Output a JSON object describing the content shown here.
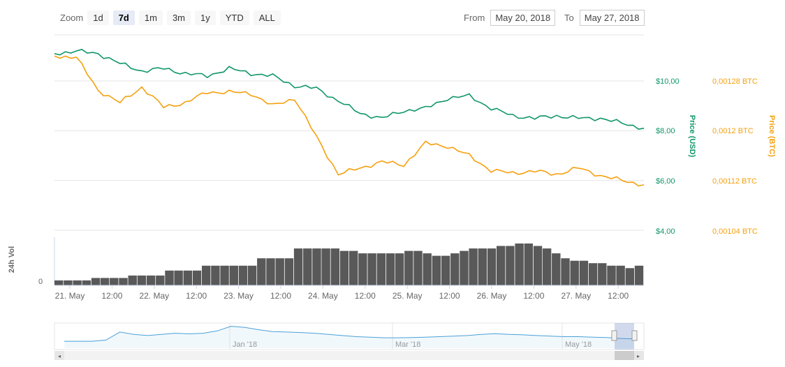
{
  "zoom": {
    "label": "Zoom",
    "buttons": [
      "1d",
      "7d",
      "1m",
      "3m",
      "1y",
      "YTD",
      "ALL"
    ],
    "active": "7d"
  },
  "range": {
    "from_label": "From",
    "from_value": "May 20, 2018",
    "to_label": "To",
    "to_value": "May 27, 2018"
  },
  "colors": {
    "usd": "#109669",
    "btc": "#f5a00d",
    "volume": "#595959",
    "navigator": "#4aa0d8"
  },
  "chart_data": [
    {
      "type": "line",
      "y_axes": [
        {
          "title": "Price (USD)",
          "ticks": [
            "$10,00",
            "$8,00",
            "$6,00",
            "$4,00"
          ],
          "range": [
            4,
            10.5
          ],
          "side": "right"
        },
        {
          "title": "Price (BTC)",
          "ticks": [
            "0,00128 BTC",
            "0,0012 BTC",
            "0,00112 BTC",
            "0,00104 BTC"
          ],
          "range": [
            0.00104,
            0.001285
          ],
          "side": "right"
        }
      ],
      "x_ticks": [
        "21. May",
        "12:00",
        "22. May",
        "12:00",
        "23. May",
        "12:00",
        "24. May",
        "12:00",
        "25. May",
        "12:00",
        "26. May",
        "12:00",
        "27. May",
        "12:00"
      ],
      "grid": true,
      "series": [
        {
          "name": "Price (USD)",
          "x": [
            "May 21 00:00",
            "May 21 06:00",
            "May 21 12:00",
            "May 21 18:00",
            "May 22 00:00",
            "May 22 06:00",
            "May 22 12:00",
            "May 22 18:00",
            "May 23 00:00",
            "May 23 06:00",
            "May 23 12:00",
            "May 23 18:00",
            "May 24 00:00",
            "May 24 06:00",
            "May 24 12:00",
            "May 24 18:00",
            "May 25 00:00",
            "May 25 06:00",
            "May 25 12:00",
            "May 25 18:00",
            "May 26 00:00",
            "May 26 06:00",
            "May 26 12:00",
            "May 26 18:00",
            "May 27 00:00",
            "May 27 06:00",
            "May 27 12:00",
            "May 27 18:00"
          ],
          "values": [
            11.1,
            11.2,
            11.1,
            10.7,
            10.4,
            10.5,
            10.3,
            10.2,
            10.5,
            10.3,
            10.2,
            9.8,
            9.7,
            9.2,
            8.7,
            8.5,
            8.8,
            8.9,
            9.3,
            9.4,
            8.9,
            8.6,
            8.5,
            8.6,
            8.5,
            8.5,
            8.3,
            8.1
          ]
        },
        {
          "name": "Price (BTC)",
          "x": [
            "May 21 00:00",
            "May 21 06:00",
            "May 21 12:00",
            "May 21 18:00",
            "May 22 00:00",
            "May 22 06:00",
            "May 22 12:00",
            "May 22 18:00",
            "May 23 00:00",
            "May 23 06:00",
            "May 23 12:00",
            "May 23 18:00",
            "May 24 00:00",
            "May 24 06:00",
            "May 24 12:00",
            "May 24 18:00",
            "May 25 00:00",
            "May 25 06:00",
            "May 25 12:00",
            "May 25 18:00",
            "May 26 00:00",
            "May 26 06:00",
            "May 26 12:00",
            "May 26 18:00",
            "May 27 00:00",
            "May 27 06:00",
            "May 27 12:00",
            "May 27 18:00"
          ],
          "values": [
            0.00132,
            0.001318,
            0.001265,
            0.001245,
            0.00127,
            0.001238,
            0.001245,
            0.001262,
            0.001262,
            0.00126,
            0.00124,
            0.001252,
            0.00119,
            0.00113,
            0.00114,
            0.00115,
            0.001145,
            0.00118,
            0.001175,
            0.00116,
            0.001136,
            0.001132,
            0.001135,
            0.00113,
            0.00114,
            0.001128,
            0.00112,
            0.001113
          ]
        }
      ]
    },
    {
      "type": "bar",
      "ylabel": "24h Vol",
      "y_ticks": [
        "0"
      ],
      "values": [
        2,
        2,
        2,
        2,
        3,
        3,
        3,
        3,
        4,
        4,
        4,
        4,
        6,
        6,
        6,
        6,
        8,
        8,
        8,
        8,
        8,
        8,
        11,
        11,
        11,
        11,
        15,
        15,
        15,
        15,
        15,
        14,
        14,
        13,
        13,
        13,
        13,
        13,
        14,
        14,
        13,
        12,
        12,
        13,
        14,
        15,
        15,
        15,
        16,
        16,
        17,
        17,
        16,
        15,
        13,
        11,
        10,
        10,
        9,
        9,
        8,
        8,
        7,
        8
      ]
    },
    {
      "type": "area",
      "name": "navigator",
      "x_ticks": [
        "Jan '18",
        "Mar '18",
        "May '18"
      ],
      "values": [
        0.3,
        0.3,
        0.3,
        0.35,
        0.7,
        0.6,
        0.55,
        0.6,
        0.65,
        0.62,
        0.65,
        0.75,
        0.95,
        0.9,
        0.8,
        0.72,
        0.7,
        0.68,
        0.65,
        0.6,
        0.55,
        0.5,
        0.48,
        0.45,
        0.45,
        0.46,
        0.48,
        0.5,
        0.52,
        0.55,
        0.6,
        0.63,
        0.6,
        0.58,
        0.55,
        0.52,
        0.5,
        0.5,
        0.48,
        0.46,
        0.42,
        0.4
      ]
    }
  ]
}
